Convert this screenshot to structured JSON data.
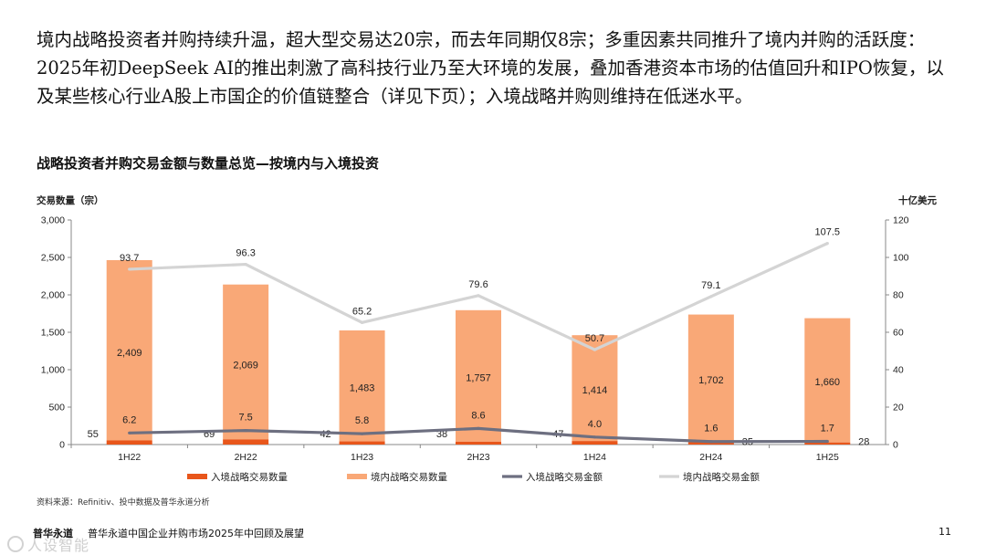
{
  "intro_text": "境内战略投资者并购持续升温，超大型交易达20宗，而去年同期仅8宗；多重因素共同推升了境内并购的活跃度：2025年初DeepSeek AI的推出刺激了高科技行业乃至大环境的发展，叠加香港资本市场的估值回升和IPO恢复，以及某些核心行业A股上市国企的价值链整合（详见下页）；入境战略并购则维持在低迷水平。",
  "chart_data": {
    "type": "bar",
    "title": "战略投资者并购交易金额与数量总览—按境内与入境投资",
    "categories": [
      "1H22",
      "2H22",
      "1H23",
      "2H23",
      "1H24",
      "2H24",
      "1H25"
    ],
    "y_left_label": "交易数量（宗）",
    "y_right_label": "十亿美元",
    "y_left_range": [
      0,
      3000
    ],
    "y_left_ticks": [
      "0",
      "500",
      "1,000",
      "1,500",
      "2,000",
      "2,500",
      "3,000"
    ],
    "y_right_range": [
      0,
      120
    ],
    "y_right_ticks": [
      "0",
      "20",
      "40",
      "60",
      "80",
      "100",
      "120"
    ],
    "series": [
      {
        "name": "入境战略交易数量",
        "kind": "bar",
        "axis": "left",
        "color": "#e8561b",
        "values": [
          55,
          69,
          42,
          38,
          47,
          35,
          28
        ],
        "labels": [
          "55",
          "69",
          "42",
          "38",
          "47",
          "35",
          "28"
        ]
      },
      {
        "name": "境内战略交易数量",
        "kind": "bar",
        "axis": "left",
        "color": "#f9a877",
        "values": [
          2409,
          2069,
          1483,
          1757,
          1414,
          1702,
          1660
        ],
        "labels": [
          "2,409",
          "2,069",
          "1,483",
          "1,757",
          "1,414",
          "1,702",
          "1,660"
        ]
      },
      {
        "name": "入境战略交易金额",
        "kind": "line",
        "axis": "right",
        "color": "#6d6f80",
        "values": [
          6.2,
          7.5,
          5.8,
          8.6,
          4.0,
          1.6,
          1.7
        ],
        "labels": [
          "6.2",
          "7.5",
          "5.8",
          "8.6",
          "4.0",
          "1.6",
          "1.7"
        ]
      },
      {
        "name": "境内战略交易金额",
        "kind": "line",
        "axis": "right",
        "color": "#d4d4d4",
        "values": [
          93.7,
          96.3,
          65.2,
          79.6,
          50.7,
          79.1,
          107.5
        ],
        "labels": [
          "93.7",
          "96.3",
          "65.2",
          "79.6",
          "50.7",
          "79.1",
          "107.5"
        ]
      }
    ],
    "legend_position": "bottom",
    "grid": false
  },
  "source_note": "资料来源：Refinitiv、投中数据及普华永道分析",
  "footer": {
    "logo": "普华永道",
    "document_title": "普华永道中国企业并购市场2025年中回顾及展望",
    "page_number": "11"
  },
  "watermark_text": "人设智能"
}
